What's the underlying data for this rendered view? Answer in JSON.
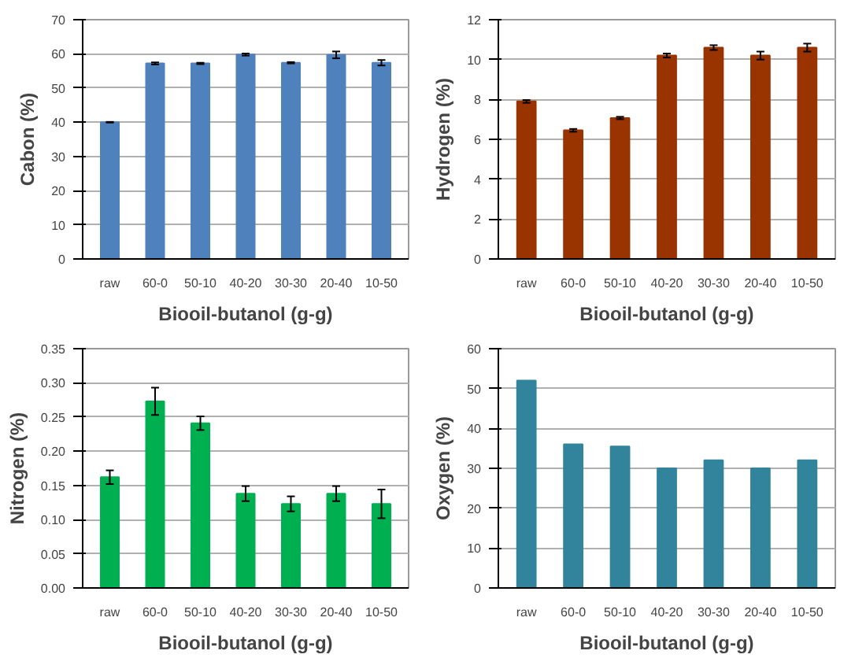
{
  "chart_data": [
    {
      "type": "bar",
      "ylabel": "Cabon (%)",
      "xlabel": "Biooil-butanol (g-g)",
      "categories": [
        "raw",
        "60-0",
        "50-10",
        "40-20",
        "30-30",
        "20-40",
        "10-50"
      ],
      "values": [
        40,
        57.2,
        57.2,
        59.8,
        57.4,
        59.7,
        57.4
      ],
      "errors": [
        0.1,
        0.3,
        0.2,
        0.3,
        0.2,
        1.0,
        0.8
      ],
      "color": "#4f81bd",
      "ylim": [
        0,
        70
      ],
      "yticks": [
        0,
        10,
        20,
        30,
        40,
        50,
        60,
        70
      ],
      "grid": "y"
    },
    {
      "type": "bar",
      "ylabel": "Hydrogen (%)",
      "xlabel": "Biooil-butanol (g-g)",
      "categories": [
        "raw",
        "60-0",
        "50-10",
        "40-20",
        "30-30",
        "20-40",
        "10-50"
      ],
      "values": [
        7.9,
        6.45,
        7.07,
        10.2,
        10.6,
        10.2,
        10.6
      ],
      "errors": [
        0.07,
        0.07,
        0.06,
        0.1,
        0.12,
        0.2,
        0.2
      ],
      "color": "#993300",
      "ylim": [
        0,
        12
      ],
      "yticks": [
        0,
        2,
        4,
        6,
        8,
        10,
        12
      ],
      "grid": "y"
    },
    {
      "type": "bar",
      "ylabel": "Nitrogen (%)",
      "xlabel": "Biooil-butanol (g-g)",
      "categories": [
        "raw",
        "60-0",
        "50-10",
        "40-20",
        "30-30",
        "20-40",
        "10-50"
      ],
      "values": [
        0.162,
        0.273,
        0.241,
        0.138,
        0.123,
        0.138,
        0.123
      ],
      "errors": [
        0.01,
        0.02,
        0.01,
        0.011,
        0.011,
        0.011,
        0.021
      ],
      "color": "#00b050",
      "ylim": [
        0,
        0.35
      ],
      "yticks": [
        {
          "value": 0,
          "label": "0.00"
        },
        {
          "value": 0.05,
          "label": "0.05"
        },
        {
          "value": 0.1,
          "label": "0.10"
        },
        {
          "value": 0.15,
          "label": "0.15"
        },
        {
          "value": 0.2,
          "label": "0.20"
        },
        {
          "value": 0.25,
          "label": "0.25"
        },
        {
          "value": 0.3,
          "label": "0.30"
        },
        {
          "value": 0.35,
          "label": "0.35"
        }
      ],
      "grid": "y"
    },
    {
      "type": "bar",
      "ylabel": "Oxygen (%)",
      "xlabel": "Biooil-butanol (g-g)",
      "categories": [
        "raw",
        "60-0",
        "50-10",
        "40-20",
        "30-30",
        "20-40",
        "10-50"
      ],
      "values": [
        52,
        36,
        35.5,
        30,
        32,
        30,
        32
      ],
      "color": "#31849b",
      "ylim": [
        0,
        60
      ],
      "yticks": [
        0,
        10,
        20,
        30,
        40,
        50,
        60
      ],
      "grid": "y"
    }
  ]
}
